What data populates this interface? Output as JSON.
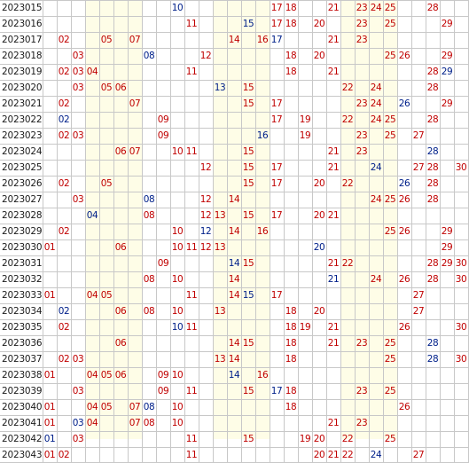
{
  "colors": {
    "red": "#c00000",
    "blue": "#00208a",
    "label": "#1a1a1a"
  },
  "num_columns": 30,
  "highlight_columns": [
    4,
    5,
    6,
    7,
    13,
    14,
    15,
    16,
    22,
    23,
    24,
    25
  ],
  "rows": [
    {
      "issue": "2023015",
      "cells": [
        {
          "n": 10,
          "c": "blue"
        },
        {
          "n": 17,
          "c": "red"
        },
        {
          "n": 18,
          "c": "red"
        },
        {
          "n": 21,
          "c": "red"
        },
        {
          "n": 23,
          "c": "red"
        },
        {
          "n": 24,
          "c": "red"
        },
        {
          "n": 25,
          "c": "red"
        },
        {
          "n": 28,
          "c": "red"
        }
      ]
    },
    {
      "issue": "2023016",
      "cells": [
        {
          "n": 11,
          "c": "red"
        },
        {
          "n": 15,
          "c": "blue"
        },
        {
          "n": 17,
          "c": "red"
        },
        {
          "n": 18,
          "c": "red"
        },
        {
          "n": 20,
          "c": "red"
        },
        {
          "n": 23,
          "c": "red"
        },
        {
          "n": 25,
          "c": "red"
        },
        {
          "n": 29,
          "c": "red"
        }
      ]
    },
    {
      "issue": "2023017",
      "cells": [
        {
          "n": 2,
          "c": "red"
        },
        {
          "n": 5,
          "c": "red"
        },
        {
          "n": 7,
          "c": "red"
        },
        {
          "n": 14,
          "c": "red"
        },
        {
          "n": 16,
          "c": "red"
        },
        {
          "n": 17,
          "c": "blue"
        },
        {
          "n": 21,
          "c": "red"
        },
        {
          "n": 23,
          "c": "red"
        }
      ]
    },
    {
      "issue": "2023018",
      "cells": [
        {
          "n": 3,
          "c": "red"
        },
        {
          "n": 8,
          "c": "blue"
        },
        {
          "n": 12,
          "c": "red"
        },
        {
          "n": 18,
          "c": "red"
        },
        {
          "n": 20,
          "c": "red"
        },
        {
          "n": 25,
          "c": "red"
        },
        {
          "n": 26,
          "c": "red"
        },
        {
          "n": 29,
          "c": "red"
        }
      ]
    },
    {
      "issue": "2023019",
      "cells": [
        {
          "n": 2,
          "c": "red"
        },
        {
          "n": 3,
          "c": "red"
        },
        {
          "n": 4,
          "c": "red"
        },
        {
          "n": 11,
          "c": "red"
        },
        {
          "n": 18,
          "c": "red"
        },
        {
          "n": 21,
          "c": "red"
        },
        {
          "n": 28,
          "c": "red"
        },
        {
          "n": 29,
          "c": "blue"
        }
      ]
    },
    {
      "issue": "2023020",
      "cells": [
        {
          "n": 3,
          "c": "red"
        },
        {
          "n": 5,
          "c": "red"
        },
        {
          "n": 6,
          "c": "red"
        },
        {
          "n": 13,
          "c": "blue"
        },
        {
          "n": 15,
          "c": "red"
        },
        {
          "n": 22,
          "c": "red"
        },
        {
          "n": 24,
          "c": "red"
        },
        {
          "n": 28,
          "c": "red"
        }
      ]
    },
    {
      "issue": "2023021",
      "cells": [
        {
          "n": 2,
          "c": "red"
        },
        {
          "n": 7,
          "c": "red"
        },
        {
          "n": 15,
          "c": "red"
        },
        {
          "n": 17,
          "c": "red"
        },
        {
          "n": 23,
          "c": "red"
        },
        {
          "n": 24,
          "c": "red"
        },
        {
          "n": 26,
          "c": "blue"
        },
        {
          "n": 29,
          "c": "red"
        }
      ]
    },
    {
      "issue": "2023022",
      "cells": [
        {
          "n": 2,
          "c": "blue"
        },
        {
          "n": 9,
          "c": "red"
        },
        {
          "n": 17,
          "c": "red"
        },
        {
          "n": 19,
          "c": "red"
        },
        {
          "n": 22,
          "c": "red"
        },
        {
          "n": 24,
          "c": "red"
        },
        {
          "n": 25,
          "c": "red"
        },
        {
          "n": 28,
          "c": "red"
        }
      ]
    },
    {
      "issue": "2023023",
      "cells": [
        {
          "n": 2,
          "c": "red"
        },
        {
          "n": 3,
          "c": "red"
        },
        {
          "n": 9,
          "c": "red"
        },
        {
          "n": 16,
          "c": "blue"
        },
        {
          "n": 19,
          "c": "red"
        },
        {
          "n": 23,
          "c": "red"
        },
        {
          "n": 25,
          "c": "red"
        },
        {
          "n": 27,
          "c": "red"
        }
      ]
    },
    {
      "issue": "2023024",
      "cells": [
        {
          "n": 6,
          "c": "red"
        },
        {
          "n": 7,
          "c": "red"
        },
        {
          "n": 10,
          "c": "red"
        },
        {
          "n": 11,
          "c": "red"
        },
        {
          "n": 15,
          "c": "red"
        },
        {
          "n": 21,
          "c": "red"
        },
        {
          "n": 23,
          "c": "red"
        },
        {
          "n": 28,
          "c": "blue"
        }
      ]
    },
    {
      "issue": "2023025",
      "cells": [
        {
          "n": 12,
          "c": "red"
        },
        {
          "n": 15,
          "c": "red"
        },
        {
          "n": 17,
          "c": "red"
        },
        {
          "n": 21,
          "c": "red"
        },
        {
          "n": 24,
          "c": "blue"
        },
        {
          "n": 27,
          "c": "red"
        },
        {
          "n": 28,
          "c": "red"
        },
        {
          "n": 30,
          "c": "red"
        }
      ]
    },
    {
      "issue": "2023026",
      "cells": [
        {
          "n": 2,
          "c": "red"
        },
        {
          "n": 5,
          "c": "red"
        },
        {
          "n": 15,
          "c": "red"
        },
        {
          "n": 17,
          "c": "red"
        },
        {
          "n": 20,
          "c": "red"
        },
        {
          "n": 22,
          "c": "red"
        },
        {
          "n": 26,
          "c": "blue"
        },
        {
          "n": 28,
          "c": "red"
        }
      ]
    },
    {
      "issue": "2023027",
      "cells": [
        {
          "n": 3,
          "c": "red"
        },
        {
          "n": 8,
          "c": "blue"
        },
        {
          "n": 12,
          "c": "red"
        },
        {
          "n": 14,
          "c": "red"
        },
        {
          "n": 24,
          "c": "red"
        },
        {
          "n": 25,
          "c": "red"
        },
        {
          "n": 26,
          "c": "red"
        },
        {
          "n": 28,
          "c": "red"
        }
      ]
    },
    {
      "issue": "2023028",
      "cells": [
        {
          "n": 4,
          "c": "blue"
        },
        {
          "n": 8,
          "c": "red"
        },
        {
          "n": 12,
          "c": "red"
        },
        {
          "n": 13,
          "c": "red"
        },
        {
          "n": 15,
          "c": "red"
        },
        {
          "n": 17,
          "c": "red"
        },
        {
          "n": 20,
          "c": "red"
        },
        {
          "n": 21,
          "c": "red"
        }
      ]
    },
    {
      "issue": "2023029",
      "cells": [
        {
          "n": 2,
          "c": "red"
        },
        {
          "n": 10,
          "c": "red"
        },
        {
          "n": 12,
          "c": "blue"
        },
        {
          "n": 14,
          "c": "red"
        },
        {
          "n": 16,
          "c": "red"
        },
        {
          "n": 25,
          "c": "red"
        },
        {
          "n": 26,
          "c": "red"
        },
        {
          "n": 29,
          "c": "red"
        }
      ]
    },
    {
      "issue": "2023030",
      "cells": [
        {
          "n": 1,
          "c": "red"
        },
        {
          "n": 6,
          "c": "red"
        },
        {
          "n": 10,
          "c": "red"
        },
        {
          "n": 11,
          "c": "red"
        },
        {
          "n": 12,
          "c": "red"
        },
        {
          "n": 13,
          "c": "red"
        },
        {
          "n": 20,
          "c": "blue"
        },
        {
          "n": 29,
          "c": "red"
        }
      ]
    },
    {
      "issue": "2023031",
      "cells": [
        {
          "n": 9,
          "c": "red"
        },
        {
          "n": 14,
          "c": "blue"
        },
        {
          "n": 15,
          "c": "red"
        },
        {
          "n": 21,
          "c": "red"
        },
        {
          "n": 22,
          "c": "red"
        },
        {
          "n": 28,
          "c": "red"
        },
        {
          "n": 29,
          "c": "red"
        },
        {
          "n": 30,
          "c": "red"
        }
      ]
    },
    {
      "issue": "2023032",
      "cells": [
        {
          "n": 8,
          "c": "red"
        },
        {
          "n": 10,
          "c": "red"
        },
        {
          "n": 14,
          "c": "red"
        },
        {
          "n": 21,
          "c": "blue"
        },
        {
          "n": 24,
          "c": "red"
        },
        {
          "n": 26,
          "c": "red"
        },
        {
          "n": 28,
          "c": "red"
        },
        {
          "n": 30,
          "c": "red"
        }
      ]
    },
    {
      "issue": "2023033",
      "cells": [
        {
          "n": 1,
          "c": "red"
        },
        {
          "n": 4,
          "c": "red"
        },
        {
          "n": 5,
          "c": "red"
        },
        {
          "n": 11,
          "c": "red"
        },
        {
          "n": 14,
          "c": "red"
        },
        {
          "n": 15,
          "c": "blue"
        },
        {
          "n": 17,
          "c": "red"
        },
        {
          "n": 27,
          "c": "red"
        }
      ]
    },
    {
      "issue": "2023034",
      "cells": [
        {
          "n": 2,
          "c": "blue"
        },
        {
          "n": 6,
          "c": "red"
        },
        {
          "n": 8,
          "c": "red"
        },
        {
          "n": 10,
          "c": "red"
        },
        {
          "n": 13,
          "c": "red"
        },
        {
          "n": 18,
          "c": "red"
        },
        {
          "n": 20,
          "c": "red"
        },
        {
          "n": 27,
          "c": "red"
        }
      ]
    },
    {
      "issue": "2023035",
      "cells": [
        {
          "n": 2,
          "c": "red"
        },
        {
          "n": 10,
          "c": "blue"
        },
        {
          "n": 11,
          "c": "red"
        },
        {
          "n": 18,
          "c": "red"
        },
        {
          "n": 19,
          "c": "red"
        },
        {
          "n": 21,
          "c": "red"
        },
        {
          "n": 26,
          "c": "red"
        },
        {
          "n": 30,
          "c": "red"
        }
      ]
    },
    {
      "issue": "2023036",
      "cells": [
        {
          "n": 6,
          "c": "red"
        },
        {
          "n": 14,
          "c": "red"
        },
        {
          "n": 15,
          "c": "red"
        },
        {
          "n": 18,
          "c": "red"
        },
        {
          "n": 21,
          "c": "red"
        },
        {
          "n": 23,
          "c": "red"
        },
        {
          "n": 25,
          "c": "red"
        },
        {
          "n": 28,
          "c": "blue"
        }
      ]
    },
    {
      "issue": "2023037",
      "cells": [
        {
          "n": 2,
          "c": "red"
        },
        {
          "n": 3,
          "c": "red"
        },
        {
          "n": 13,
          "c": "red"
        },
        {
          "n": 14,
          "c": "red"
        },
        {
          "n": 18,
          "c": "red"
        },
        {
          "n": 25,
          "c": "red"
        },
        {
          "n": 28,
          "c": "blue"
        },
        {
          "n": 30,
          "c": "red"
        }
      ]
    },
    {
      "issue": "2023038",
      "cells": [
        {
          "n": 1,
          "c": "red"
        },
        {
          "n": 4,
          "c": "red"
        },
        {
          "n": 5,
          "c": "red"
        },
        {
          "n": 6,
          "c": "red"
        },
        {
          "n": 9,
          "c": "red"
        },
        {
          "n": 10,
          "c": "red"
        },
        {
          "n": 14,
          "c": "blue"
        },
        {
          "n": 16,
          "c": "red"
        }
      ]
    },
    {
      "issue": "2023039",
      "cells": [
        {
          "n": 3,
          "c": "red"
        },
        {
          "n": 9,
          "c": "red"
        },
        {
          "n": 11,
          "c": "red"
        },
        {
          "n": 15,
          "c": "red"
        },
        {
          "n": 17,
          "c": "blue"
        },
        {
          "n": 18,
          "c": "red"
        },
        {
          "n": 23,
          "c": "red"
        },
        {
          "n": 25,
          "c": "red"
        }
      ]
    },
    {
      "issue": "2023040",
      "cells": [
        {
          "n": 1,
          "c": "red"
        },
        {
          "n": 4,
          "c": "red"
        },
        {
          "n": 5,
          "c": "red"
        },
        {
          "n": 7,
          "c": "red"
        },
        {
          "n": 8,
          "c": "blue"
        },
        {
          "n": 10,
          "c": "red"
        },
        {
          "n": 18,
          "c": "red"
        },
        {
          "n": 26,
          "c": "red"
        }
      ]
    },
    {
      "issue": "2023041",
      "cells": [
        {
          "n": 1,
          "c": "red"
        },
        {
          "n": 3,
          "c": "blue"
        },
        {
          "n": 4,
          "c": "red"
        },
        {
          "n": 7,
          "c": "red"
        },
        {
          "n": 8,
          "c": "red"
        },
        {
          "n": 10,
          "c": "red"
        },
        {
          "n": 21,
          "c": "red"
        },
        {
          "n": 23,
          "c": "red"
        }
      ]
    },
    {
      "issue": "2023042",
      "cells": [
        {
          "n": 1,
          "c": "blue"
        },
        {
          "n": 3,
          "c": "red"
        },
        {
          "n": 11,
          "c": "red"
        },
        {
          "n": 15,
          "c": "red"
        },
        {
          "n": 19,
          "c": "red"
        },
        {
          "n": 20,
          "c": "red"
        },
        {
          "n": 22,
          "c": "red"
        },
        {
          "n": 25,
          "c": "red"
        }
      ]
    },
    {
      "issue": "2023043",
      "cells": [
        {
          "n": 1,
          "c": "red"
        },
        {
          "n": 2,
          "c": "red"
        },
        {
          "n": 11,
          "c": "red"
        },
        {
          "n": 20,
          "c": "red"
        },
        {
          "n": 21,
          "c": "red"
        },
        {
          "n": 22,
          "c": "red"
        },
        {
          "n": 24,
          "c": "blue"
        },
        {
          "n": 27,
          "c": "red"
        }
      ]
    }
  ]
}
